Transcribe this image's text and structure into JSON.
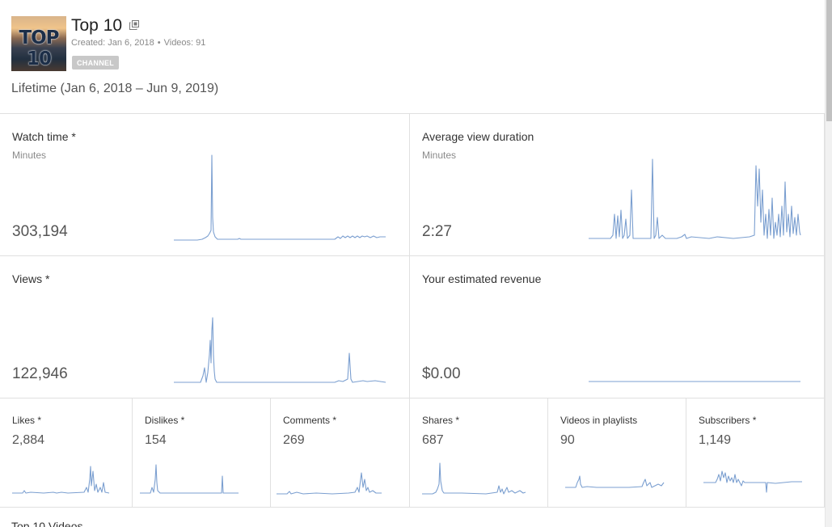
{
  "channel": {
    "title": "Top 10",
    "thumb_text": "TOP 10",
    "created": "Created: Jan 6, 2018",
    "separator": "•",
    "videos": "Videos: 91",
    "badge": "CHANNEL",
    "range": "Lifetime (Jan 6, 2018 – Jun 9, 2019)"
  },
  "metrics": {
    "watch_time": {
      "label": "Watch time *",
      "unit": "Minutes",
      "value": "303,194"
    },
    "avg_view_duration": {
      "label": "Average view duration",
      "unit": "Minutes",
      "value": "2:27"
    },
    "views": {
      "label": "Views *",
      "value": "122,946"
    },
    "revenue": {
      "label": "Your estimated revenue",
      "value": "$0.00"
    },
    "likes": {
      "label": "Likes *",
      "value": "2,884"
    },
    "dislikes": {
      "label": "Dislikes *",
      "value": "154"
    },
    "comments": {
      "label": "Comments *",
      "value": "269"
    },
    "shares": {
      "label": "Shares *",
      "value": "687"
    },
    "playlists": {
      "label": "Videos in playlists",
      "value": "90"
    },
    "subscribers": {
      "label": "Subscribers *",
      "value": "1,149"
    }
  },
  "accent": "#7b9fd0",
  "partial_text": "Top 10 Videos"
}
